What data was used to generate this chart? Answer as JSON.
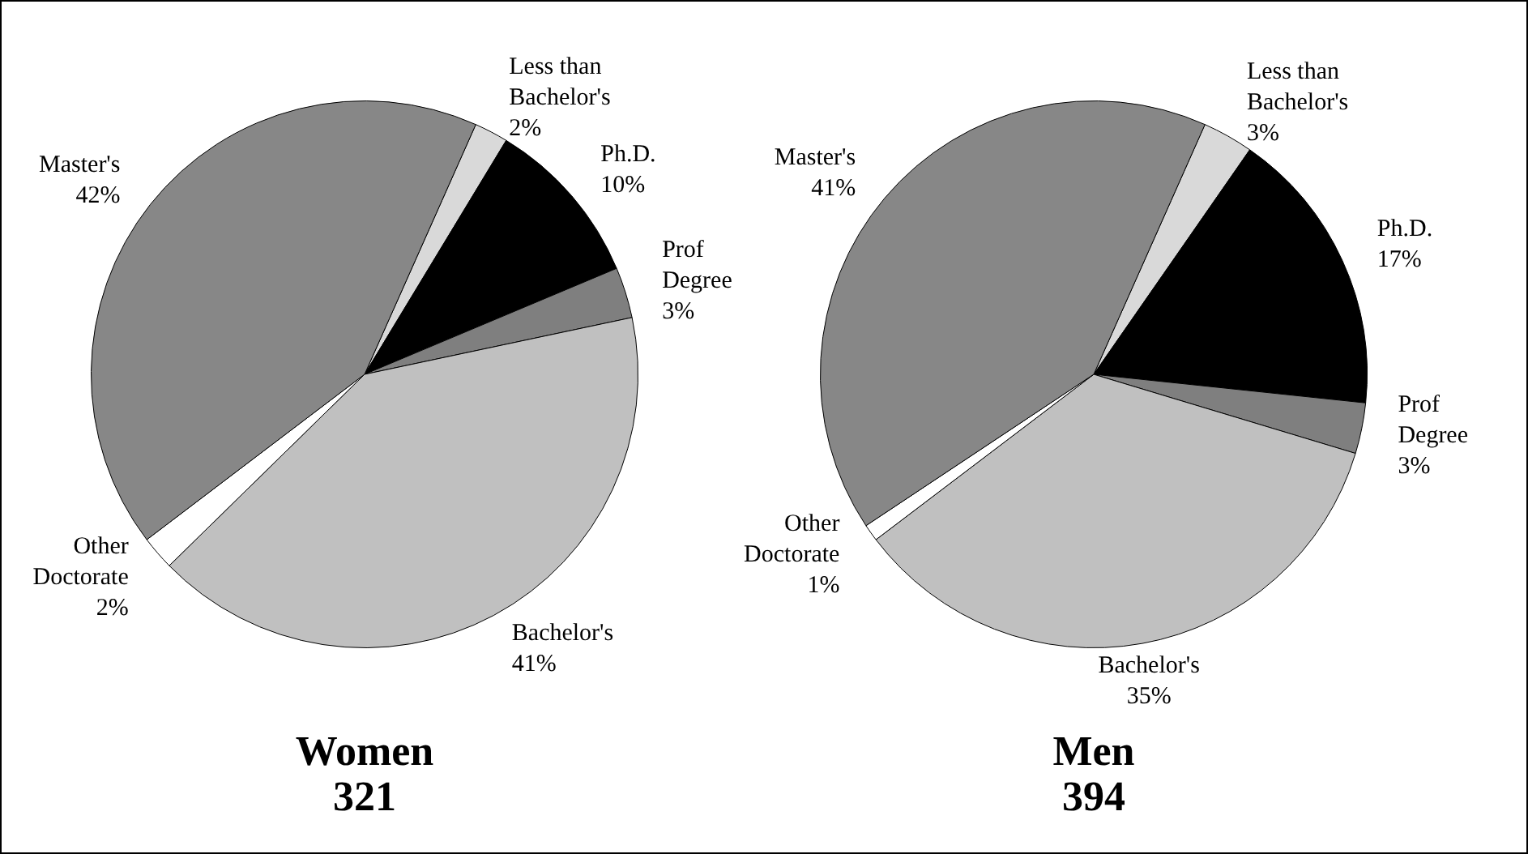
{
  "chart_data": [
    {
      "type": "pie",
      "title": "Women",
      "subtitle": "321",
      "categories": [
        "Less than Bachelor's",
        "Ph.D.",
        "Prof Degree",
        "Bachelor's",
        "Other Doctorate",
        "Master's"
      ],
      "values": [
        2,
        10,
        3,
        41,
        2,
        42
      ],
      "value_labels": [
        "2%",
        "10%",
        "3%",
        "41%",
        "2%",
        "42%"
      ],
      "colors": [
        "#d9d9d9",
        "#000000",
        "#7f7f7f",
        "#c0c0c0",
        "#ffffff",
        "#878787"
      ],
      "legend": false
    },
    {
      "type": "pie",
      "title": "Men",
      "subtitle": "394",
      "categories": [
        "Less than Bachelor's",
        "Ph.D.",
        "Prof Degree",
        "Bachelor's",
        "Other Doctorate",
        "Master's"
      ],
      "values": [
        3,
        17,
        3,
        35,
        1,
        41
      ],
      "value_labels": [
        "3%",
        "17%",
        "3%",
        "35%",
        "1%",
        "41%"
      ],
      "colors": [
        "#d9d9d9",
        "#000000",
        "#7f7f7f",
        "#c0c0c0",
        "#ffffff",
        "#878787"
      ],
      "legend": false
    }
  ]
}
